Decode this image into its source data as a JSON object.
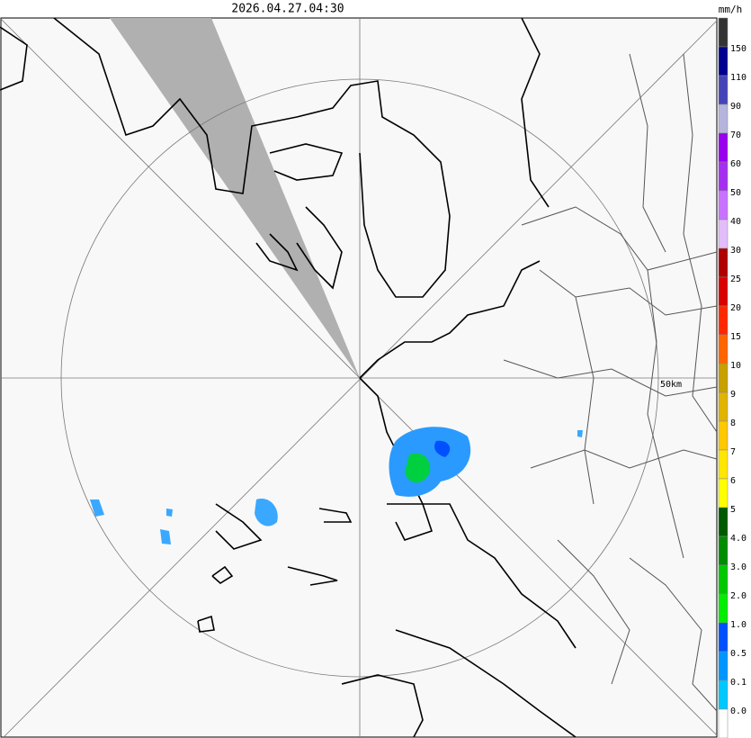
{
  "header": {
    "timestamp": "2026.04.27.04:30",
    "unit": "mm/h"
  },
  "legend": {
    "labels": [
      "150",
      "110",
      "90",
      "70",
      "60",
      "50",
      "40",
      "30",
      "25",
      "20",
      "15",
      "10",
      "9",
      "8",
      "7",
      "6",
      "5",
      "4.0",
      "3.0",
      "2.0",
      "1.0",
      "0.5",
      "0.1",
      "0.0"
    ],
    "colors": [
      "#333333",
      "#000090",
      "#4444b8",
      "#b4b4dc",
      "#9900ee",
      "#a530f0",
      "#c873ff",
      "#e3bdfa",
      "#b00000",
      "#d80000",
      "#ff2800",
      "#ff6400",
      "#c8a000",
      "#e0b400",
      "#ffc800",
      "#ffe600",
      "#ffff00",
      "#005a00",
      "#008c00",
      "#00c800",
      "#00ee00",
      "#0050ff",
      "#0096ff",
      "#00c8ff",
      "#ffffff"
    ]
  },
  "map": {
    "range_label": "50km"
  }
}
